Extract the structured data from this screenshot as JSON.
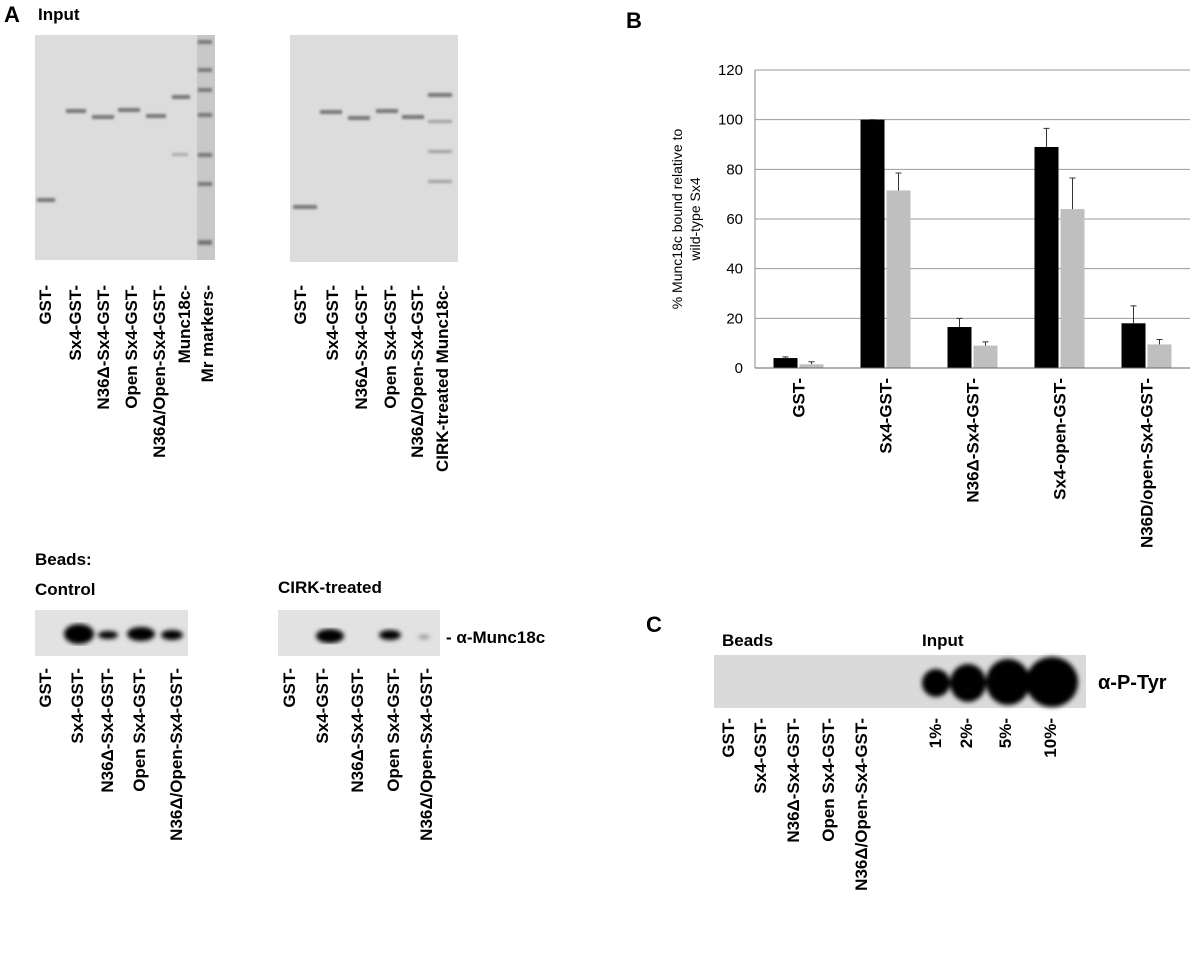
{
  "panel_a": {
    "label": "A",
    "title": "Input",
    "gel1_lanes": [
      "GST-",
      "Sx4-GST-",
      "N36Δ-Sx4-GST-",
      "Open Sx4-GST-",
      "N36Δ/Open-Sx4-GST-",
      "Munc18c-",
      "Mr markers-"
    ],
    "gel2_lanes": [
      "GST-",
      "Sx4-GST-",
      "N36Δ-Sx4-GST-",
      "Open Sx4-GST-",
      "N36Δ/Open-Sx4-GST-",
      "CIRK-treated Munc18c-"
    ],
    "beads_label": "Beads:",
    "control_label": "Control",
    "cirk_label": "CIRK-treated",
    "antibody": "- α-Munc18c",
    "blot1_lanes": [
      "GST-",
      "Sx4-GST-",
      "N36Δ-Sx4-GST-",
      "Open Sx4-GST-",
      "N36Δ/Open-Sx4-GST-"
    ],
    "blot2_lanes": [
      "GST-",
      "Sx4-GST-",
      "N36Δ-Sx4-GST-",
      "Open Sx4-GST-",
      "N36Δ/Open-Sx4-GST-"
    ]
  },
  "chart_data": {
    "type": "bar",
    "panel_label": "B",
    "y_label": [
      "% Munc18c bound relative to",
      "wild-type Sx4"
    ],
    "categories": [
      "GST-",
      "Sx4-GST-",
      "N36Δ-Sx4-GST-",
      "Sx4-open-GST-",
      "N36D/open-Sx4-GST-"
    ],
    "series": [
      {
        "color": "#000000",
        "values": [
          4,
          100,
          16.5,
          89,
          18
        ],
        "errors": [
          0.5,
          0,
          3.5,
          7.5,
          7
        ]
      },
      {
        "color": "#bfbfbf",
        "values": [
          1.5,
          71.5,
          9,
          64,
          9.5
        ],
        "errors": [
          1,
          7,
          1.5,
          12.5,
          2
        ]
      }
    ],
    "ylim": [
      0,
      120
    ],
    "yticks": [
      0,
      20,
      40,
      60,
      80,
      100,
      120
    ],
    "grid": true
  },
  "panel_c": {
    "label": "C",
    "beads": "Beads",
    "input": "Input",
    "antibody": "α-P-Tyr",
    "bead_lanes": [
      "GST-",
      "Sx4-GST-",
      "N36Δ-Sx4-GST-",
      "Open Sx4-GST-",
      "N36Δ/Open-Sx4-GST-"
    ],
    "input_lanes": [
      "1%-",
      "2%-",
      "5%-",
      "10%-"
    ]
  }
}
